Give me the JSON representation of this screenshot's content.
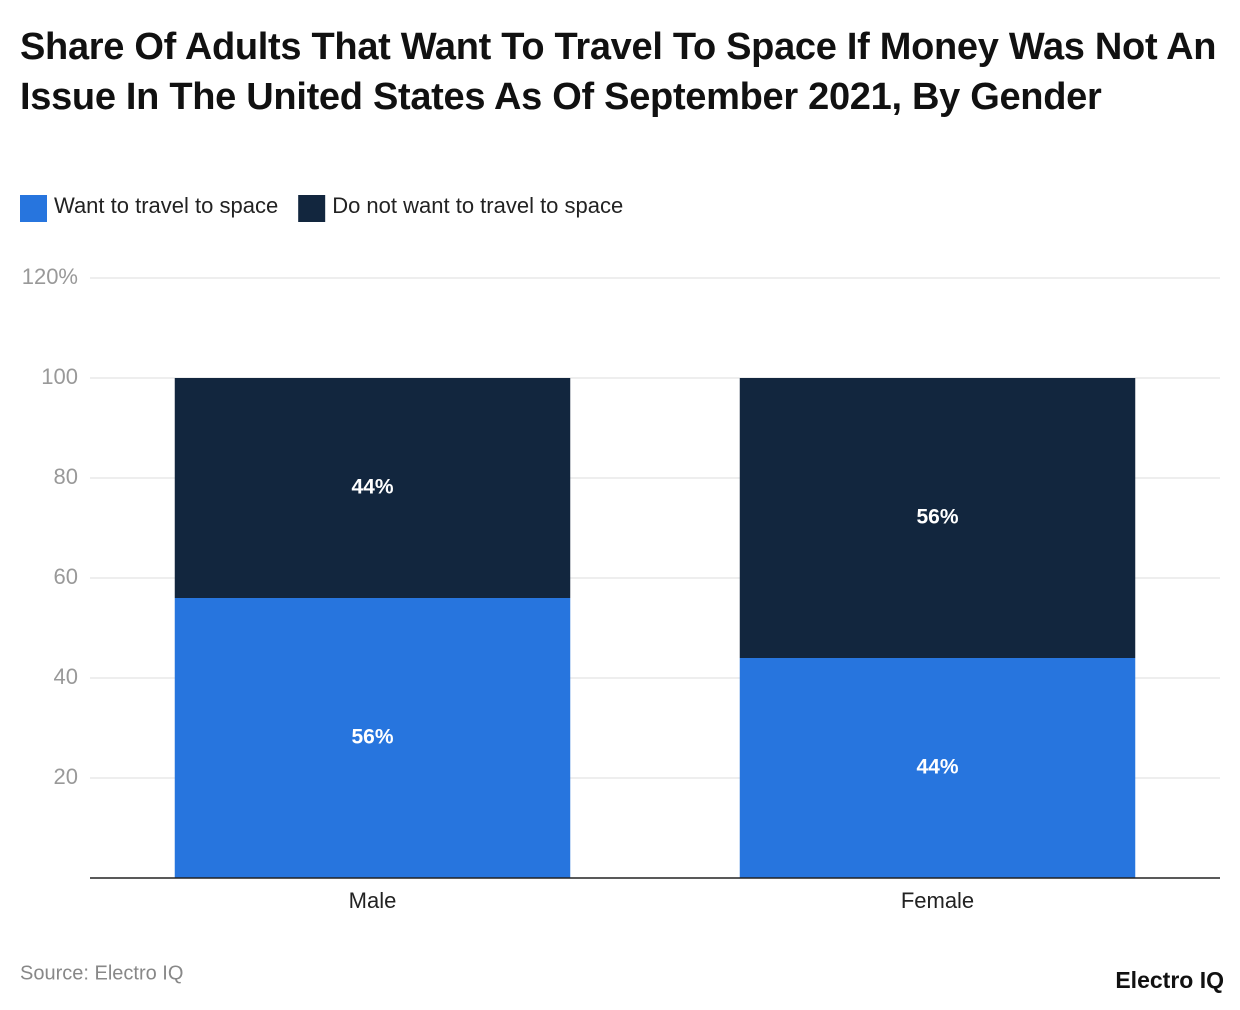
{
  "chart_data": {
    "type": "stacked_bar",
    "title": "Share Of Adults That Want To Travel To Space If Money Was Not An Issue In The United States As Of September 2021, By Gender",
    "categories": [
      "Male",
      "Female"
    ],
    "series": [
      {
        "name": "Want to travel to space",
        "color": "#2775de",
        "values": [
          56,
          44
        ],
        "value_labels": [
          "56%",
          "44%"
        ]
      },
      {
        "name": "Do not want to travel to space",
        "color": "#12263e",
        "values": [
          44,
          56
        ],
        "value_labels": [
          "44%",
          "56%"
        ]
      }
    ],
    "ylim": [
      0,
      120
    ],
    "yticks": [
      20,
      40,
      60,
      80,
      100,
      {
        "value": 120,
        "label": "120%"
      }
    ],
    "grid": true,
    "legend": "top-left",
    "source": "Source: Electro IQ",
    "brand": "Electro IQ"
  }
}
